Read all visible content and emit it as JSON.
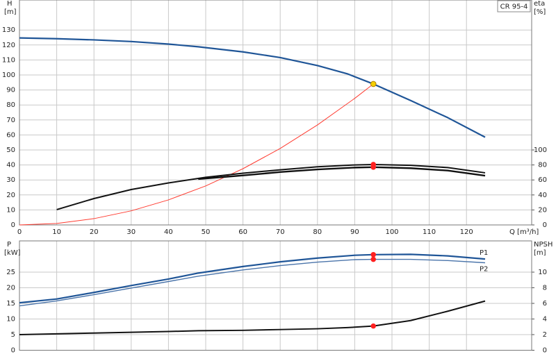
{
  "chart_data": [
    {
      "type": "line",
      "title": "CR 95-4",
      "xlabel": "Q [m³/h]",
      "ylabel": [
        "H",
        "[m]"
      ],
      "y2label": [
        "eta",
        "[%]"
      ],
      "xlim": [
        0,
        137.5
      ],
      "xticks": [
        0,
        10,
        20,
        30,
        40,
        50,
        60,
        70,
        80,
        90,
        100,
        110,
        120
      ],
      "ylim": [
        0,
        150
      ],
      "yticks": [
        0,
        10,
        20,
        30,
        40,
        50,
        60,
        70,
        80,
        90,
        100,
        110,
        120,
        130
      ],
      "y2lim": [
        0,
        300
      ],
      "y2ticks": [
        0,
        20,
        40,
        60,
        80,
        100
      ],
      "grid": true,
      "series": [
        {
          "color": "#1f5597",
          "axis": "y",
          "x": [
            0,
            10,
            20,
            30,
            40,
            48,
            60,
            70,
            80,
            88,
            95,
            105,
            115,
            125
          ],
          "values": [
            124.7,
            124.2,
            123.4,
            122.3,
            120.6,
            118.8,
            115.4,
            111.6,
            106.3,
            100.8,
            94,
            83,
            71.5,
            58.5
          ]
        },
        {
          "color": "#ff3b30",
          "axis": "y",
          "x": [
            0,
            10,
            20,
            30,
            40,
            50,
            60,
            70,
            80,
            90,
            95
          ],
          "values": [
            0,
            1,
            4.2,
            9.4,
            16.7,
            26,
            37.5,
            51,
            66.7,
            84.4,
            94
          ]
        },
        {
          "color": "#111111",
          "axis": "y2",
          "x": [
            10,
            20,
            30,
            40,
            50,
            60,
            70,
            80,
            90,
            95,
            105,
            115,
            125
          ],
          "values": [
            20.4,
            35.2,
            47.2,
            56,
            63.5,
            69,
            73.5,
            77.5,
            80,
            80.6,
            79.5,
            76.5,
            69.5
          ]
        },
        {
          "color": "#111111",
          "axis": "y2",
          "x": [
            48,
            60,
            70,
            80,
            90,
            95,
            105,
            115,
            125
          ],
          "values": [
            61.2,
            66,
            70.5,
            74,
            76.5,
            77,
            75.7,
            72.5,
            65.7
          ]
        }
      ],
      "points": [
        {
          "x": 95,
          "y": 94,
          "axis": "y",
          "color": "#f5d000"
        },
        {
          "x": 95,
          "y": 80.6,
          "axis": "y2",
          "color": "#ff2020"
        },
        {
          "x": 95,
          "y": 77,
          "axis": "y2",
          "color": "#ff2020"
        }
      ]
    },
    {
      "type": "line",
      "ylabel": [
        "P",
        "[kW]"
      ],
      "y2label": [
        "NPSH",
        "[m]"
      ],
      "xlim": [
        0,
        137.5
      ],
      "xticks": [
        0,
        10,
        20,
        30,
        40,
        50,
        60,
        70,
        80,
        90,
        100,
        110,
        120
      ],
      "xtick_labels": false,
      "ylim": [
        0,
        35
      ],
      "yticks": [
        0,
        5,
        10,
        15,
        20,
        25
      ],
      "y2lim": [
        0,
        14
      ],
      "y2ticks": [
        0,
        2,
        4,
        6,
        8,
        10
      ],
      "grid": true,
      "series": [
        {
          "name": "P1",
          "color": "#1f5597",
          "axis": "y",
          "x": [
            0,
            10,
            20,
            30,
            40,
            48,
            60,
            70,
            80,
            90,
            95,
            105,
            115,
            125
          ],
          "values": [
            15.2,
            16.4,
            18.5,
            20.7,
            22.8,
            24.7,
            26.8,
            28.3,
            29.5,
            30.4,
            30.6,
            30.7,
            30.2,
            29.2
          ]
        },
        {
          "name": "P2",
          "color": "#4a74aa",
          "axis": "y",
          "x": [
            0,
            10,
            20,
            30,
            40,
            48,
            60,
            70,
            80,
            90,
            95,
            105,
            115,
            125
          ],
          "values": [
            14.2,
            15.8,
            17.8,
            19.9,
            22,
            23.7,
            25.7,
            27.1,
            28.2,
            29,
            29.1,
            29.1,
            28.7,
            28
          ]
        },
        {
          "color": "#111111",
          "axis": "y2",
          "x": [
            0,
            10,
            20,
            30,
            40,
            48,
            60,
            70,
            80,
            88,
            95,
            105,
            115,
            125
          ],
          "values": [
            2,
            2.1,
            2.2,
            2.3,
            2.4,
            2.5,
            2.55,
            2.65,
            2.75,
            2.9,
            3.1,
            3.8,
            5,
            6.3
          ]
        }
      ],
      "points": [
        {
          "x": 95,
          "y": 30.6,
          "axis": "y",
          "color": "#ff2020"
        },
        {
          "x": 95,
          "y": 29.1,
          "axis": "y",
          "color": "#ff2020"
        },
        {
          "x": 95,
          "y": 3.1,
          "axis": "y2",
          "color": "#ff2020"
        }
      ]
    }
  ]
}
